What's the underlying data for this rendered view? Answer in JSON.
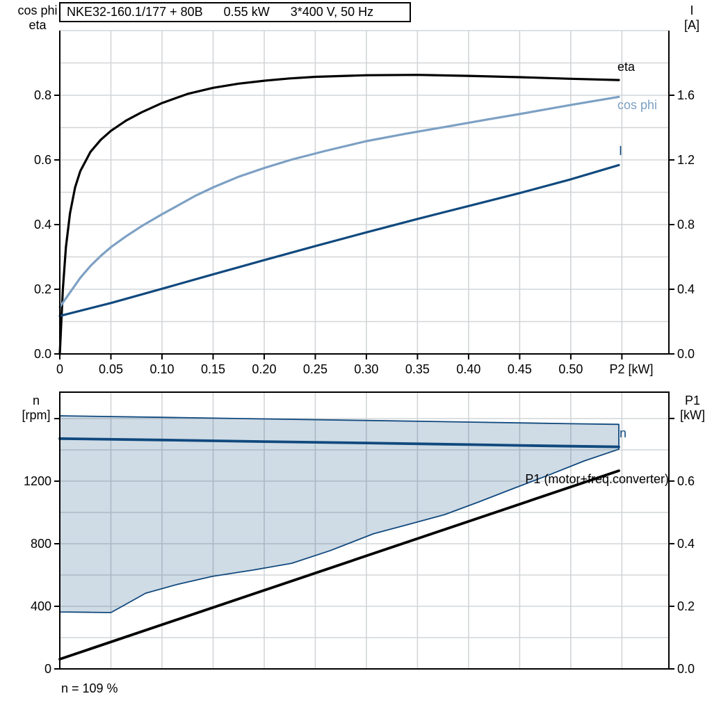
{
  "title": {
    "segments": [
      "NKE32-160.1/177 + 80B",
      "0.55 kW",
      "3*400 V, 50 Hz"
    ]
  },
  "caption": "n = 109 %",
  "colors": {
    "curve_black": "#000000",
    "curve_light_blue": "#7da0c4",
    "curve_dark_blue": "#10497e",
    "envelope_fill": "#10497e",
    "grid": "#d2d5d8",
    "axis": "#000000"
  },
  "chart_data": [
    {
      "type": "line",
      "x_axis": {
        "label": "P2 [kW]",
        "min": 0,
        "max": 0.596,
        "ticks": [
          0,
          0.05,
          0.1,
          0.15,
          0.2,
          0.25,
          0.3,
          0.35,
          0.4,
          0.45,
          0.5
        ],
        "tick_labels": [
          "0",
          "0.05",
          "0.10",
          "0.15",
          "0.20",
          "0.25",
          "0.30",
          "0.35",
          "0.40",
          "0.45",
          "0.50"
        ],
        "unlabeled_ticks": [
          0.55
        ],
        "grid_step": 0.05,
        "grid_max": 0.55
      },
      "left_axis": {
        "label": "cos phi / eta",
        "min": 0,
        "max": 1.0,
        "ticks": [
          0,
          0.2,
          0.4,
          0.6,
          0.8
        ],
        "tick_labels": [
          "0.0",
          "0.2",
          "0.4",
          "0.6",
          "0.8"
        ],
        "unlabeled_ticks": [],
        "grid_step": 0.1
      },
      "right_axis": {
        "label": "I [A]",
        "min": 0,
        "max": 2.0,
        "ticks": [
          0,
          0.4,
          0.8,
          1.2,
          1.6
        ],
        "tick_labels": [
          "0.0",
          "0.4",
          "0.8",
          "1.2",
          "1.6"
        ],
        "unlabeled_ticks": []
      },
      "series": [
        {
          "name": "eta",
          "axis": "left",
          "color": "#000000",
          "width": 3.2,
          "points": [
            [
              0,
              0
            ],
            [
              0.003,
              0.2
            ],
            [
              0.006,
              0.33
            ],
            [
              0.01,
              0.435
            ],
            [
              0.015,
              0.515
            ],
            [
              0.02,
              0.565
            ],
            [
              0.03,
              0.625
            ],
            [
              0.04,
              0.662
            ],
            [
              0.05,
              0.69
            ],
            [
              0.065,
              0.722
            ],
            [
              0.08,
              0.747
            ],
            [
              0.1,
              0.776
            ],
            [
              0.125,
              0.804
            ],
            [
              0.15,
              0.823
            ],
            [
              0.175,
              0.836
            ],
            [
              0.2,
              0.845
            ],
            [
              0.225,
              0.852
            ],
            [
              0.25,
              0.857
            ],
            [
              0.3,
              0.862
            ],
            [
              0.35,
              0.863
            ],
            [
              0.4,
              0.86
            ],
            [
              0.45,
              0.856
            ],
            [
              0.5,
              0.851
            ],
            [
              0.547,
              0.847
            ]
          ]
        },
        {
          "name": "cos phi",
          "axis": "left",
          "color": "#7da0c4",
          "width": 3.2,
          "points": [
            [
              0,
              0.145
            ],
            [
              0.01,
              0.19
            ],
            [
              0.02,
              0.235
            ],
            [
              0.03,
              0.272
            ],
            [
              0.04,
              0.303
            ],
            [
              0.05,
              0.33
            ],
            [
              0.065,
              0.364
            ],
            [
              0.08,
              0.395
            ],
            [
              0.1,
              0.432
            ],
            [
              0.115,
              0.458
            ],
            [
              0.132,
              0.488
            ],
            [
              0.15,
              0.515
            ],
            [
              0.175,
              0.548
            ],
            [
              0.2,
              0.575
            ],
            [
              0.227,
              0.601
            ],
            [
              0.26,
              0.628
            ],
            [
              0.3,
              0.658
            ],
            [
              0.34,
              0.682
            ],
            [
              0.377,
              0.702
            ],
            [
              0.42,
              0.726
            ],
            [
              0.45,
              0.742
            ],
            [
              0.5,
              0.77
            ],
            [
              0.547,
              0.795
            ]
          ]
        },
        {
          "name": "I",
          "axis": "right",
          "color": "#10497e",
          "width": 3.2,
          "points": [
            [
              0,
              0.235
            ],
            [
              0.05,
              0.315
            ],
            [
              0.1,
              0.403
            ],
            [
              0.15,
              0.492
            ],
            [
              0.2,
              0.58
            ],
            [
              0.25,
              0.667
            ],
            [
              0.3,
              0.752
            ],
            [
              0.35,
              0.835
            ],
            [
              0.4,
              0.915
            ],
            [
              0.45,
              0.995
            ],
            [
              0.5,
              1.08
            ],
            [
              0.547,
              1.168
            ]
          ]
        }
      ],
      "curve_labels": [
        {
          "text": "eta"
        },
        {
          "text": "cos phi"
        },
        {
          "text": "I"
        }
      ]
    },
    {
      "type": "line",
      "x_axis": {
        "label": "",
        "min": 0,
        "max": 0.596,
        "ticks": [],
        "tick_labels": [],
        "unlabeled_ticks": [],
        "grid_step": 0.05,
        "grid_max": 0.55
      },
      "left_axis": {
        "label": "n [rpm]",
        "min": 0,
        "max": 1769,
        "ticks": [
          0,
          400,
          800,
          1200
        ],
        "tick_labels": [
          "0",
          "400",
          "800",
          "1200"
        ],
        "unlabeled_ticks": [
          1600
        ],
        "grid_step": 200
      },
      "right_axis": {
        "label": "P1 [kW]",
        "min": 0,
        "max": 0.884,
        "ticks": [
          0,
          0.2,
          0.4,
          0.6
        ],
        "tick_labels": [
          "0.0",
          "0.2",
          "0.4",
          "0.6"
        ],
        "unlabeled_ticks": [
          0.8
        ]
      },
      "envelope": {
        "name": "speed-operating-range",
        "fill": "#10497e",
        "fill_opacity": 0.2,
        "stroke": "#10497e",
        "stroke_width": 1.8,
        "top": [
          [
            0,
            1618
          ],
          [
            0.1,
            1608
          ],
          [
            0.2,
            1598
          ],
          [
            0.3,
            1588
          ],
          [
            0.4,
            1578
          ],
          [
            0.5,
            1567
          ],
          [
            0.547,
            1563
          ]
        ],
        "bottom": [
          [
            0,
            364
          ],
          [
            0.03,
            362
          ],
          [
            0.05,
            360
          ],
          [
            0.06,
            396
          ],
          [
            0.084,
            484
          ],
          [
            0.115,
            540
          ],
          [
            0.149,
            591
          ],
          [
            0.19,
            633
          ],
          [
            0.227,
            675
          ],
          [
            0.265,
            757
          ],
          [
            0.307,
            864
          ],
          [
            0.342,
            925
          ],
          [
            0.377,
            987
          ],
          [
            0.41,
            1067
          ],
          [
            0.445,
            1156
          ],
          [
            0.48,
            1243
          ],
          [
            0.513,
            1329
          ],
          [
            0.547,
            1404
          ]
        ]
      },
      "series": [
        {
          "name": "n",
          "axis": "left",
          "color": "#10497e",
          "width": 3.8,
          "points": [
            [
              0,
              1472
            ],
            [
              0.1,
              1463
            ],
            [
              0.2,
              1453
            ],
            [
              0.3,
              1444
            ],
            [
              0.4,
              1434
            ],
            [
              0.475,
              1426
            ],
            [
              0.547,
              1419
            ]
          ]
        },
        {
          "name": "P1 (motor+freq.converter)",
          "axis": "right",
          "color": "#000000",
          "width": 3.8,
          "points": [
            [
              0,
              0.031
            ],
            [
              0.27,
              0.328
            ],
            [
              0.547,
              0.633
            ]
          ]
        }
      ],
      "curve_labels": [
        {
          "text": "n"
        },
        {
          "text": "P1 (motor+freq.converter)"
        }
      ]
    }
  ],
  "axis_corner_labels": {
    "top_left_line1": "cos phi",
    "top_left_line2": "eta",
    "top_right_line1": "I",
    "top_right_line2": "[A]",
    "bottom_left_line1": "n",
    "bottom_left_line2": "[rpm]",
    "bottom_right_line1": "P1",
    "bottom_right_line2": "[kW]"
  }
}
